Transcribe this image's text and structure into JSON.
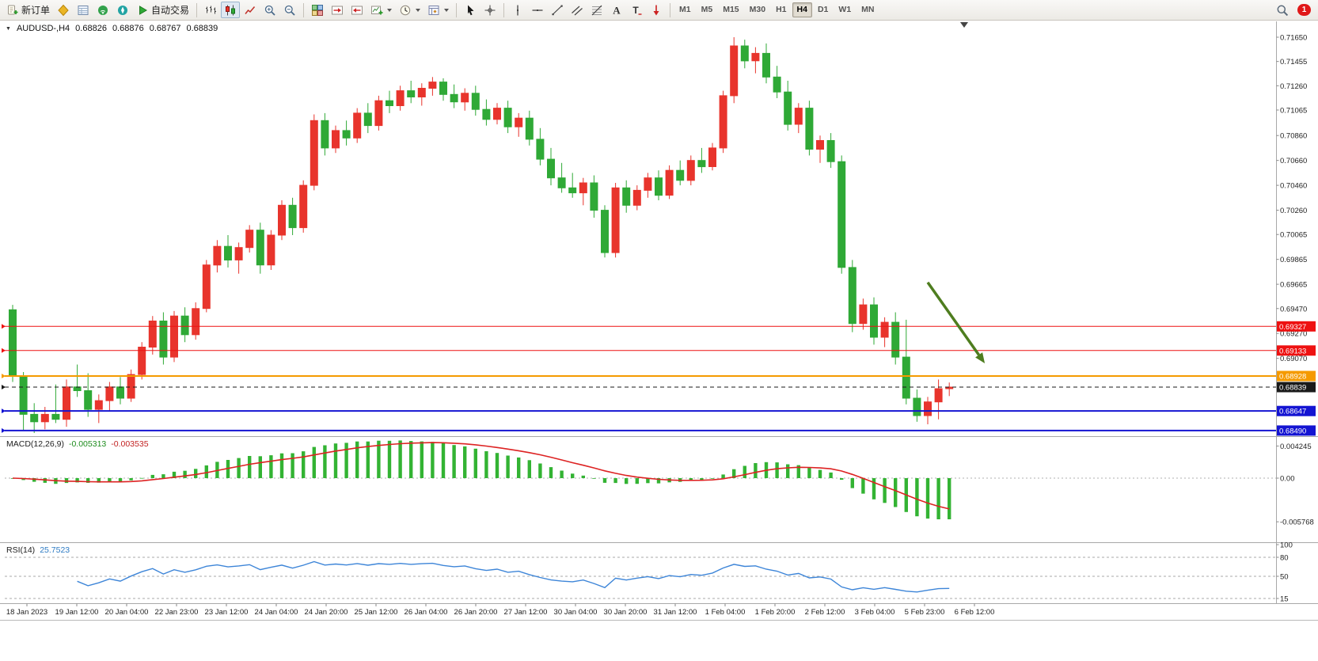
{
  "toolbar": {
    "groups": [
      {
        "kind": "textbtn",
        "name": "new-order-button",
        "icon": "new-order",
        "label": "新订单"
      },
      {
        "kind": "iconrow",
        "buttons": [
          "market-watch",
          "data-window",
          "signals",
          "navigator"
        ]
      },
      {
        "kind": "textbtn",
        "name": "autotrading-button",
        "icon": "autotrading-play",
        "label": "自动交易"
      },
      {
        "kind": "sep"
      },
      {
        "kind": "iconrow",
        "buttons": [
          "bar-chart",
          "candlestick-chart",
          "line-chart"
        ],
        "active": "candlestick-chart"
      },
      {
        "kind": "iconrow",
        "buttons": [
          "zoom-in",
          "zoom-out"
        ]
      },
      {
        "kind": "sep"
      },
      {
        "kind": "iconrow",
        "buttons": [
          "tile-windows"
        ]
      },
      {
        "kind": "iconrow",
        "buttons": [
          "auto-scroll",
          "chart-shift"
        ]
      },
      {
        "kind": "iconrow",
        "buttons": [
          "new-chart",
          "period-clock",
          "templates"
        ],
        "carets": true
      },
      {
        "kind": "sep"
      },
      {
        "kind": "iconrow",
        "buttons": [
          "cursor",
          "crosshair"
        ]
      },
      {
        "kind": "sep"
      },
      {
        "kind": "iconrow",
        "buttons": [
          "vertical-line",
          "horizontal-line",
          "trendline",
          "equidistant-channel",
          "fibonacci",
          "text",
          "text-label",
          "arrows"
        ]
      },
      {
        "kind": "sep"
      },
      {
        "kind": "timeframes",
        "buttons": [
          "M1",
          "M5",
          "M15",
          "M30",
          "H1",
          "H4",
          "D1",
          "W1",
          "MN"
        ],
        "active": "H4"
      }
    ],
    "right": {
      "notification_count": "1"
    }
  },
  "header": {
    "symbol_period": "AUDUSD-,H4",
    "open": "0.68826",
    "high": "0.68876",
    "low": "0.68767",
    "close": "0.68839"
  },
  "macd": {
    "title": "MACD(12,26,9)",
    "value_main": "-0.005313",
    "value_signal": "-0.003535",
    "histogram_color": "#33b333",
    "signal_color": "#dd2222",
    "params": {
      "fast": 12,
      "slow": 26,
      "signal": 9
    },
    "axis": [
      {
        "label": "0.004245",
        "value": 0.004245
      },
      {
        "label": "0.00",
        "value": 0
      },
      {
        "label": "-0.005768",
        "value": -0.005768
      }
    ]
  },
  "rsi": {
    "title": "RSI(14)",
    "value": "25.7523",
    "color": "#3d85d8",
    "period": 14,
    "axis": [
      {
        "label": "100",
        "value": 100,
        "line": false
      },
      {
        "label": "80",
        "value": 80,
        "line": true
      },
      {
        "label": "50",
        "value": 50,
        "line": true
      },
      {
        "label": "15",
        "value": 15,
        "line": true
      }
    ]
  },
  "chart_data": {
    "type": "candlestick",
    "symbol": "AUDUSD-",
    "timeframe": "H4",
    "bull_color": "#e8342c",
    "bear_color": "#2fa936",
    "current_bar": {
      "open": 0.68826,
      "high": 0.68876,
      "low": 0.68767,
      "close": 0.68839
    },
    "price_axis_ticks": [
      "0.71650",
      "0.71455",
      "0.71260",
      "0.71065",
      "0.70860",
      "0.70660",
      "0.70460",
      "0.70260",
      "0.70065",
      "0.69865",
      "0.69665",
      "0.69470",
      "0.69270",
      "0.69070"
    ],
    "time_axis": [
      "18 Jan 2023",
      "19 Jan 12:00",
      "20 Jan 04:00",
      "22 Jan 23:00",
      "23 Jan 12:00",
      "24 Jan 04:00",
      "24 Jan 20:00",
      "25 Jan 12:00",
      "26 Jan 04:00",
      "26 Jan 20:00",
      "27 Jan 12:00",
      "30 Jan 04:00",
      "30 Jan 20:00",
      "31 Jan 12:00",
      "1 Feb 04:00",
      "1 Feb 20:00",
      "2 Feb 12:00",
      "3 Feb 04:00",
      "5 Feb 23:00",
      "6 Feb 12:00"
    ],
    "hlines": [
      {
        "price": 0.69327,
        "label": "0.69327",
        "color": "#ee1111",
        "width": 1,
        "dashed": false,
        "role": "resistance-line"
      },
      {
        "price": 0.69133,
        "label": "0.69133",
        "color": "#ee1111",
        "width": 1,
        "dashed": false,
        "role": "resistance-line"
      },
      {
        "price": 0.68928,
        "label": "0.68928",
        "color": "#f59a00",
        "width": 2,
        "dashed": false,
        "role": "level-line"
      },
      {
        "price": 0.68839,
        "label": "0.68839",
        "color": "#1a1a1a",
        "width": 1,
        "dashed": true,
        "role": "current-price-line"
      },
      {
        "price": 0.68647,
        "label": "0.68647",
        "color": "#1414d2",
        "width": 2,
        "dashed": false,
        "role": "support-line"
      },
      {
        "price": 0.6849,
        "label": "0.68490",
        "color": "#1414d2",
        "width": 2,
        "dashed": false,
        "role": "support-line"
      }
    ],
    "arrow": {
      "from_bar": 85,
      "from_price": 0.6968,
      "to_bar": 90.3,
      "to_price": 0.6903,
      "color": "#4e7d1f"
    },
    "candles": [
      [
        0.6946,
        0.695,
        0.6888,
        0.6893
      ],
      [
        0.6893,
        0.6896,
        0.6849,
        0.6862
      ],
      [
        0.6862,
        0.6871,
        0.6847,
        0.6856
      ],
      [
        0.6856,
        0.6868,
        0.685,
        0.6862
      ],
      [
        0.6862,
        0.6886,
        0.6855,
        0.6858
      ],
      [
        0.6858,
        0.689,
        0.6852,
        0.6884
      ],
      [
        0.6884,
        0.6902,
        0.6876,
        0.6881
      ],
      [
        0.6881,
        0.6895,
        0.686,
        0.6866
      ],
      [
        0.6866,
        0.6878,
        0.6855,
        0.6873
      ],
      [
        0.6873,
        0.6888,
        0.6865,
        0.6884
      ],
      [
        0.6884,
        0.6892,
        0.687,
        0.6875
      ],
      [
        0.6875,
        0.6898,
        0.6872,
        0.6894
      ],
      [
        0.6894,
        0.692,
        0.689,
        0.6916
      ],
      [
        0.6916,
        0.6941,
        0.691,
        0.6937
      ],
      [
        0.6937,
        0.6944,
        0.6902,
        0.6908
      ],
      [
        0.6908,
        0.6945,
        0.6904,
        0.6941
      ],
      [
        0.6941,
        0.6948,
        0.692,
        0.6926
      ],
      [
        0.6926,
        0.6952,
        0.6922,
        0.6947
      ],
      [
        0.6947,
        0.6986,
        0.6944,
        0.6982
      ],
      [
        0.6982,
        0.7002,
        0.6976,
        0.6997
      ],
      [
        0.6997,
        0.7006,
        0.698,
        0.6986
      ],
      [
        0.6986,
        0.7,
        0.6975,
        0.6996
      ],
      [
        0.6996,
        0.7014,
        0.6992,
        0.701
      ],
      [
        0.701,
        0.7016,
        0.6975,
        0.6982
      ],
      [
        0.6982,
        0.701,
        0.6978,
        0.7006
      ],
      [
        0.7006,
        0.7034,
        0.7002,
        0.703
      ],
      [
        0.703,
        0.7036,
        0.7006,
        0.7012
      ],
      [
        0.7012,
        0.705,
        0.7008,
        0.7046
      ],
      [
        0.7046,
        0.7103,
        0.7042,
        0.7098
      ],
      [
        0.7098,
        0.7104,
        0.707,
        0.7076
      ],
      [
        0.7076,
        0.7094,
        0.7072,
        0.709
      ],
      [
        0.709,
        0.7098,
        0.7078,
        0.7084
      ],
      [
        0.7084,
        0.7108,
        0.708,
        0.7104
      ],
      [
        0.7104,
        0.7112,
        0.7088,
        0.7094
      ],
      [
        0.7094,
        0.7118,
        0.709,
        0.7114
      ],
      [
        0.7114,
        0.7122,
        0.7104,
        0.711
      ],
      [
        0.711,
        0.7126,
        0.7106,
        0.7122
      ],
      [
        0.7122,
        0.713,
        0.7112,
        0.7117
      ],
      [
        0.7117,
        0.7128,
        0.711,
        0.7124
      ],
      [
        0.7124,
        0.7133,
        0.7118,
        0.7129
      ],
      [
        0.7129,
        0.7132,
        0.7114,
        0.7119
      ],
      [
        0.7119,
        0.7127,
        0.7108,
        0.7113
      ],
      [
        0.7113,
        0.7124,
        0.7106,
        0.712
      ],
      [
        0.712,
        0.7126,
        0.7102,
        0.7107
      ],
      [
        0.7107,
        0.7115,
        0.7094,
        0.7099
      ],
      [
        0.7099,
        0.7112,
        0.7095,
        0.7108
      ],
      [
        0.7108,
        0.7114,
        0.7088,
        0.7093
      ],
      [
        0.7093,
        0.7104,
        0.7085,
        0.71
      ],
      [
        0.71,
        0.7106,
        0.7078,
        0.7083
      ],
      [
        0.7083,
        0.7092,
        0.7062,
        0.7067
      ],
      [
        0.7067,
        0.7076,
        0.7046,
        0.7052
      ],
      [
        0.7052,
        0.7064,
        0.704,
        0.7044
      ],
      [
        0.7044,
        0.7056,
        0.7036,
        0.704
      ],
      [
        0.704,
        0.7052,
        0.703,
        0.7048
      ],
      [
        0.7048,
        0.7054,
        0.702,
        0.7026
      ],
      [
        0.7026,
        0.703,
        0.6988,
        0.6992
      ],
      [
        0.6992,
        0.7048,
        0.6988,
        0.7044
      ],
      [
        0.7044,
        0.705,
        0.7024,
        0.703
      ],
      [
        0.703,
        0.7046,
        0.7026,
        0.7042
      ],
      [
        0.7042,
        0.7056,
        0.7036,
        0.7052
      ],
      [
        0.7052,
        0.7058,
        0.7034,
        0.7038
      ],
      [
        0.7038,
        0.7062,
        0.7035,
        0.7058
      ],
      [
        0.7058,
        0.7066,
        0.7046,
        0.705
      ],
      [
        0.705,
        0.707,
        0.7046,
        0.7066
      ],
      [
        0.7066,
        0.7076,
        0.7056,
        0.7061
      ],
      [
        0.7061,
        0.708,
        0.7058,
        0.7076
      ],
      [
        0.7076,
        0.7122,
        0.7072,
        0.7118
      ],
      [
        0.7118,
        0.7165,
        0.7112,
        0.7158
      ],
      [
        0.7158,
        0.7163,
        0.714,
        0.7146
      ],
      [
        0.7146,
        0.7157,
        0.7136,
        0.7152
      ],
      [
        0.7152,
        0.716,
        0.7128,
        0.7133
      ],
      [
        0.7133,
        0.7142,
        0.7116,
        0.7121
      ],
      [
        0.7121,
        0.713,
        0.709,
        0.7095
      ],
      [
        0.7095,
        0.7112,
        0.7088,
        0.7108
      ],
      [
        0.7108,
        0.7114,
        0.707,
        0.7075
      ],
      [
        0.7075,
        0.7086,
        0.7064,
        0.7082
      ],
      [
        0.7082,
        0.7088,
        0.706,
        0.7065
      ],
      [
        0.7065,
        0.707,
        0.6975,
        0.698
      ],
      [
        0.698,
        0.6986,
        0.6928,
        0.6935
      ],
      [
        0.6935,
        0.6955,
        0.693,
        0.695
      ],
      [
        0.695,
        0.6956,
        0.6918,
        0.6924
      ],
      [
        0.6924,
        0.694,
        0.6916,
        0.6936
      ],
      [
        0.6936,
        0.6944,
        0.6902,
        0.6908
      ],
      [
        0.6908,
        0.6938,
        0.687,
        0.6875
      ],
      [
        0.6875,
        0.6882,
        0.6856,
        0.6861
      ],
      [
        0.6861,
        0.6876,
        0.6854,
        0.6872
      ],
      [
        0.6872,
        0.689,
        0.6858,
        0.68826
      ],
      [
        0.68826,
        0.68876,
        0.68767,
        0.68839
      ]
    ]
  }
}
